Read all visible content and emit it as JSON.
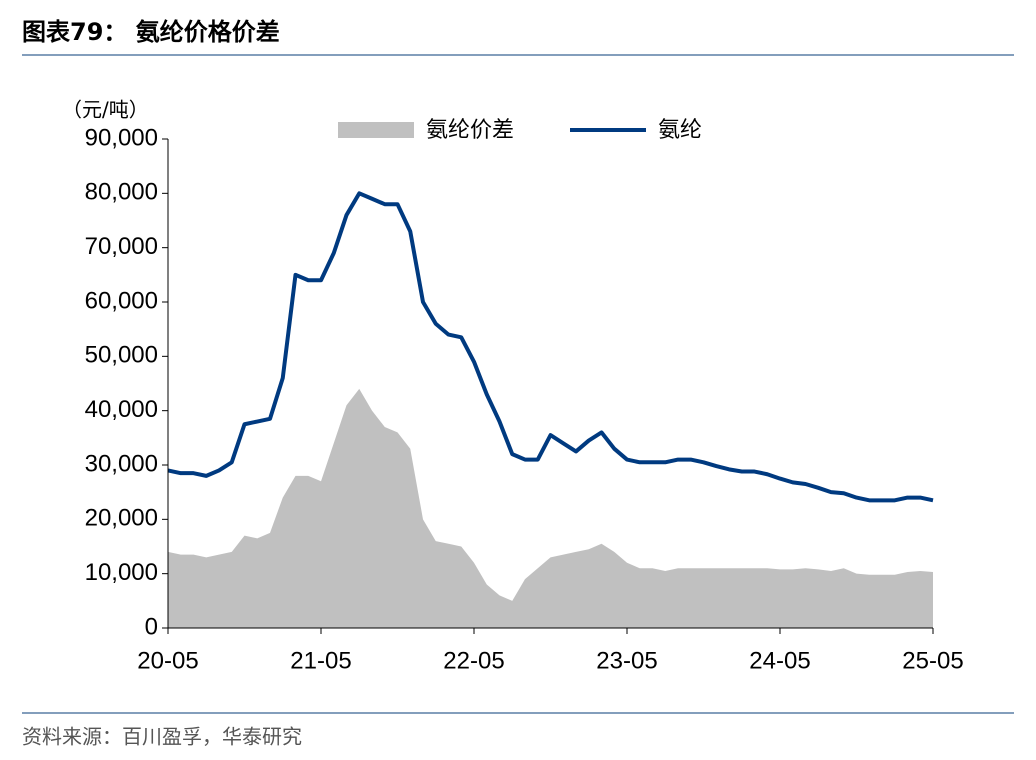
{
  "chart_data": {
    "type": "area-line",
    "title": "图表79：  氨纶价格价差",
    "y_unit": "（元/吨）",
    "source": "资料来源：百川盈孚，华泰研究",
    "categories": [
      "20-05",
      null,
      null,
      null,
      null,
      null,
      null,
      null,
      null,
      null,
      null,
      null,
      "21-05",
      null,
      null,
      null,
      null,
      null,
      null,
      null,
      null,
      null,
      null,
      null,
      "22-05",
      null,
      null,
      null,
      null,
      null,
      null,
      null,
      null,
      null,
      null,
      null,
      "23-05",
      null,
      null,
      null,
      null,
      null,
      null,
      null,
      null,
      null,
      null,
      null,
      "24-05",
      null,
      null,
      null,
      null,
      null,
      null,
      null,
      null,
      null,
      null,
      null,
      "25-05"
    ],
    "series": [
      {
        "name": "氨纶价差",
        "kind": "area",
        "color": "#c0c0c0",
        "values": [
          14000,
          13500,
          13500,
          13000,
          13500,
          14000,
          17000,
          16500,
          17500,
          24000,
          28000,
          28000,
          27000,
          34000,
          41000,
          44000,
          40000,
          37000,
          36000,
          33000,
          20000,
          16000,
          15500,
          15000,
          12000,
          8000,
          6000,
          5000,
          9000,
          11000,
          13000,
          13500,
          14000,
          14500,
          15500,
          14000,
          12000,
          11000,
          11000,
          10500,
          11000,
          11000,
          11000,
          11000,
          11000,
          11000,
          11000,
          11000,
          10800,
          10800,
          11000,
          10800,
          10500,
          11000,
          10000,
          9800,
          9800,
          9800,
          10300,
          10500,
          10300
        ]
      },
      {
        "name": "氨纶",
        "kind": "line",
        "color": "#003a80",
        "values": [
          29000,
          28500,
          28500,
          28000,
          29000,
          30500,
          37500,
          38000,
          38500,
          46000,
          65000,
          64000,
          64000,
          69000,
          76000,
          80000,
          79000,
          78000,
          78000,
          73000,
          60000,
          56000,
          54000,
          53500,
          49000,
          43000,
          38000,
          32000,
          31000,
          31000,
          35500,
          34000,
          32500,
          34500,
          36000,
          33000,
          31000,
          30500,
          30500,
          30500,
          31000,
          31000,
          30500,
          29800,
          29200,
          28800,
          28800,
          28300,
          27500,
          26800,
          26500,
          25800,
          25000,
          24800,
          24000,
          23500,
          23500,
          23500,
          24000,
          24000,
          23500
        ]
      }
    ],
    "ylim": [
      0,
      90000
    ],
    "yticks": [
      0,
      {
        "value": 10000,
        "label": "10,000"
      },
      {
        "value": 20000,
        "label": "20,000"
      },
      {
        "value": 30000,
        "label": "30,000"
      },
      {
        "value": 40000,
        "label": "40,000"
      },
      {
        "value": 50000,
        "label": "50,000"
      },
      {
        "value": 60000,
        "label": "60,000"
      },
      {
        "value": 70000,
        "label": "70,000"
      },
      {
        "value": 80000,
        "label": "80,000"
      },
      {
        "value": 90000,
        "label": "90,000"
      }
    ],
    "grid": false
  }
}
